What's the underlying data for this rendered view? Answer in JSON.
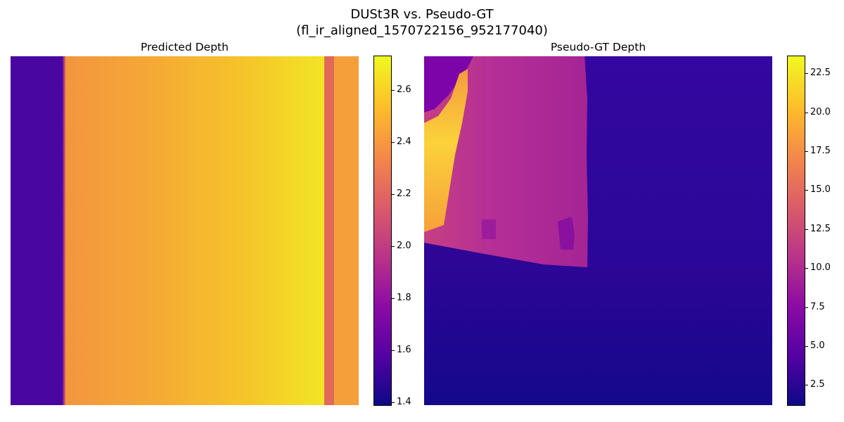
{
  "figure": {
    "title_line1": "DUSt3R vs. Pseudo-GT",
    "title_line2": "(fl_ir_aligned_1570722156_952177040)"
  },
  "chart_data": [
    {
      "type": "heatmap",
      "title": "Predicted Depth",
      "colormap": "plasma",
      "colorbar": {
        "range": [
          1.39,
          2.73
        ],
        "ticks": [
          1.4,
          1.6,
          1.8,
          2.0,
          2.2,
          2.4,
          2.6
        ],
        "tick_labels": [
          "1.4",
          "1.6",
          "1.8",
          "2.0",
          "2.2",
          "2.4",
          "2.6"
        ]
      },
      "axes_visible": false,
      "regions": [
        {
          "name": "left strip",
          "depth": 1.52
        },
        {
          "name": "main wall (left side)",
          "depth": 2.4
        },
        {
          "name": "main wall (right side)",
          "depth": 2.68
        },
        {
          "name": "narrow vertical band",
          "depth": 2.15
        },
        {
          "name": "right strip",
          "depth": 2.45
        }
      ]
    },
    {
      "type": "heatmap",
      "title": "Pseudo-GT Depth",
      "colormap": "plasma",
      "colorbar": {
        "range": [
          1.2,
          23.6
        ],
        "ticks": [
          2.5,
          5.0,
          7.5,
          10.0,
          12.5,
          15.0,
          17.5,
          20.0,
          22.5
        ],
        "tick_labels": [
          "2.5",
          "5.0",
          "7.5",
          "10.0",
          "12.5",
          "15.0",
          "17.5",
          "20.0",
          "22.5"
        ]
      },
      "axes_visible": false,
      "regions": [
        {
          "name": "far bright region (top-left)",
          "depth": 21.0
        },
        {
          "name": "mid-range region",
          "depth": 10.5
        },
        {
          "name": "floor / right wall",
          "depth": 3.0
        },
        {
          "name": "bottom edge",
          "depth": 1.5
        }
      ]
    }
  ]
}
